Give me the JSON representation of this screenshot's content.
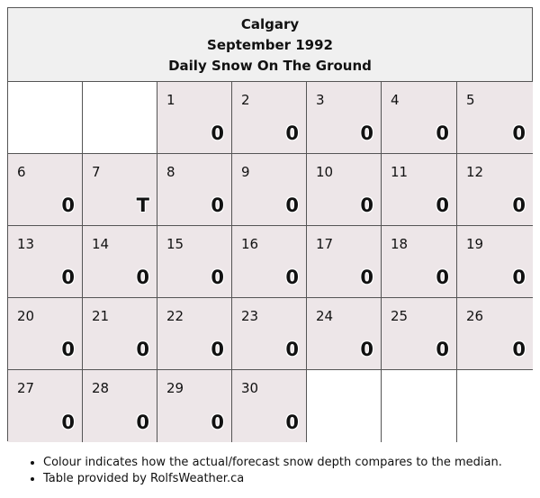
{
  "header": {
    "city": "Calgary",
    "month": "September 1992",
    "subtitle": "Daily Snow On The Ground"
  },
  "cells": [
    {
      "day": "",
      "value": ""
    },
    {
      "day": "",
      "value": ""
    },
    {
      "day": "1",
      "value": "0"
    },
    {
      "day": "2",
      "value": "0"
    },
    {
      "day": "3",
      "value": "0"
    },
    {
      "day": "4",
      "value": "0"
    },
    {
      "day": "5",
      "value": "0"
    },
    {
      "day": "6",
      "value": "0"
    },
    {
      "day": "7",
      "value": "T"
    },
    {
      "day": "8",
      "value": "0"
    },
    {
      "day": "9",
      "value": "0"
    },
    {
      "day": "10",
      "value": "0"
    },
    {
      "day": "11",
      "value": "0"
    },
    {
      "day": "12",
      "value": "0"
    },
    {
      "day": "13",
      "value": "0"
    },
    {
      "day": "14",
      "value": "0"
    },
    {
      "day": "15",
      "value": "0"
    },
    {
      "day": "16",
      "value": "0"
    },
    {
      "day": "17",
      "value": "0"
    },
    {
      "day": "18",
      "value": "0"
    },
    {
      "day": "19",
      "value": "0"
    },
    {
      "day": "20",
      "value": "0"
    },
    {
      "day": "21",
      "value": "0"
    },
    {
      "day": "22",
      "value": "0"
    },
    {
      "day": "23",
      "value": "0"
    },
    {
      "day": "24",
      "value": "0"
    },
    {
      "day": "25",
      "value": "0"
    },
    {
      "day": "26",
      "value": "0"
    },
    {
      "day": "27",
      "value": "0"
    },
    {
      "day": "28",
      "value": "0"
    },
    {
      "day": "29",
      "value": "0"
    },
    {
      "day": "30",
      "value": "0"
    },
    {
      "day": "",
      "value": ""
    },
    {
      "day": "",
      "value": ""
    },
    {
      "day": "",
      "value": ""
    }
  ],
  "colors": {
    "cell_fill": "#ede6e8",
    "header_fill": "#f0f0f0",
    "border": "#555555"
  },
  "notes": [
    "Colour indicates how the actual/forecast snow depth compares to the median.",
    "Table provided by RolfsWeather.ca"
  ]
}
